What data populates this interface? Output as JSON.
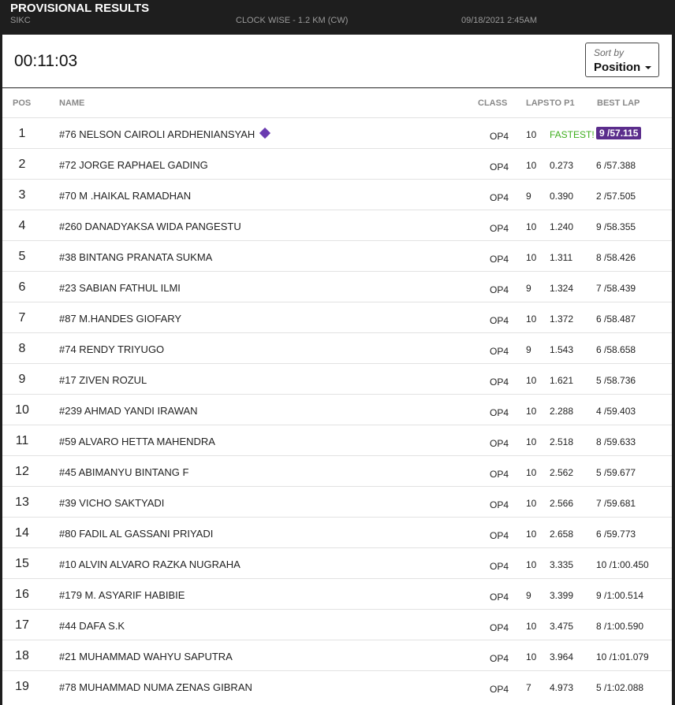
{
  "header": {
    "title": "PROVISIONAL RESULTS",
    "track": "SIKC",
    "event": "CLOCK WISE - 1.2 KM (CW)",
    "date": "09/18/2021 2:45AM"
  },
  "timer": "00:11:03",
  "sort": {
    "label": "Sort by",
    "value": "Position"
  },
  "table": {
    "columns": [
      "POS",
      "NAME",
      "CLASS",
      "LAPS",
      "TO P1",
      "BEST LAP"
    ],
    "rows": [
      [
        1,
        "#76 NELSON CAIROLI ARDHENIANSYAH",
        "OP4",
        10,
        "FASTEST!",
        "9 /57.115"
      ],
      [
        2,
        "#72 JORGE RAPHAEL GADING",
        "OP4",
        10,
        "0.273",
        "6 /57.388"
      ],
      [
        3,
        "#70 M .HAIKAL RAMADHAN",
        "OP4",
        9,
        "0.390",
        "2 /57.505"
      ],
      [
        4,
        "#260 DANADYAKSA WIDA PANGESTU",
        "OP4",
        10,
        "1.240",
        "9 /58.355"
      ],
      [
        5,
        "#38 BINTANG PRANATA SUKMA",
        "OP4",
        10,
        "1.311",
        "8 /58.426"
      ],
      [
        6,
        "#23 SABIAN FATHUL ILMI",
        "OP4",
        9,
        "1.324",
        "7 /58.439"
      ],
      [
        7,
        "#87 M.HANDES GIOFARY",
        "OP4",
        10,
        "1.372",
        "6 /58.487"
      ],
      [
        8,
        "#74 RENDY TRIYUGO",
        "OP4",
        9,
        "1.543",
        "6 /58.658"
      ],
      [
        9,
        "#17 ZIVEN ROZUL",
        "OP4",
        10,
        "1.621",
        "5 /58.736"
      ],
      [
        10,
        "#239 AHMAD YANDI IRAWAN",
        "OP4",
        10,
        "2.288",
        "4 /59.403"
      ],
      [
        11,
        "#59 ALVARO HETTA MAHENDRA",
        "OP4",
        10,
        "2.518",
        "8 /59.633"
      ],
      [
        12,
        "#45 ABIMANYU BINTANG F",
        "OP4",
        10,
        "2.562",
        "5 /59.677"
      ],
      [
        13,
        "#39 VICHO SAKTYADI",
        "OP4",
        10,
        "2.566",
        "7 /59.681"
      ],
      [
        14,
        "#80 FADIL AL GASSANI PRIYADI",
        "OP4",
        10,
        "2.658",
        "6 /59.773"
      ],
      [
        15,
        "#10 ALVIN ALVARO RAZKA NUGRAHA",
        "OP4",
        10,
        "3.335",
        "10 /1:00.450"
      ],
      [
        16,
        "#179 M. ASYARIF HABIBIE",
        "OP4",
        9,
        "3.399",
        "9 /1:00.514"
      ],
      [
        17,
        "#44 DAFA S.K",
        "OP4",
        10,
        "3.475",
        "8 /1:00.590"
      ],
      [
        18,
        "#21 MUHAMMAD WAHYU SAPUTRA",
        "OP4",
        10,
        "3.964",
        "10 /1:01.079"
      ],
      [
        19,
        "#78 MUHAMMAD NUMA ZENAS GIBRAN",
        "OP4",
        7,
        "4.973",
        "5 /1:02.088"
      ]
    ]
  }
}
